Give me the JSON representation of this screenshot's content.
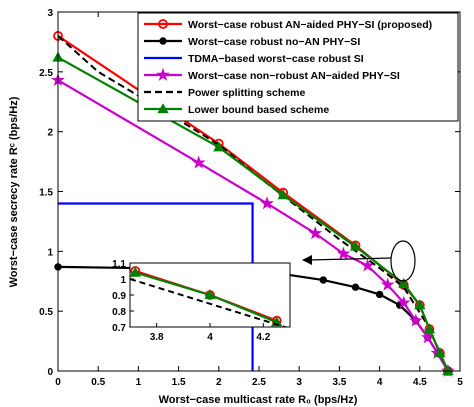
{
  "chart_data": {
    "type": "line",
    "xlabel": "Worst−case multicast rate R₀ (bps/Hz)",
    "ylabel": "Worst−case secrecy rate Rᶜ (bps/Hz)",
    "xlim": [
      0,
      5
    ],
    "ylim": [
      0,
      3
    ],
    "xticks": [
      "0",
      "0.5",
      "1",
      "1.5",
      "2",
      "2.5",
      "3",
      "3.5",
      "4",
      "4.5",
      "5"
    ],
    "yticks": [
      "0",
      "0.5",
      "1",
      "1.5",
      "2",
      "2.5",
      "3"
    ],
    "grid": false,
    "legend_position": "top-right",
    "series": [
      {
        "name": "Worst−case robust AN−aided PHY−SI (proposed)",
        "color": "#ff0000",
        "marker": "circle",
        "dash": "solid",
        "x": [
          0,
          2.0,
          2.8,
          3.7,
          4.3,
          4.5,
          4.62,
          4.75,
          4.85
        ],
        "y": [
          2.8,
          1.9,
          1.49,
          1.05,
          0.72,
          0.55,
          0.35,
          0.15,
          0.0
        ]
      },
      {
        "name": "Worst−case robust no−AN PHY−SI",
        "color": "#000000",
        "marker": "dot",
        "dash": "solid",
        "x": [
          0,
          1.0,
          2.0,
          2.8,
          3.3,
          3.7,
          4.0,
          4.25,
          4.45,
          4.6,
          4.72,
          4.85
        ],
        "y": [
          0.87,
          0.86,
          0.84,
          0.81,
          0.76,
          0.7,
          0.64,
          0.55,
          0.42,
          0.28,
          0.15,
          0.0
        ]
      },
      {
        "name": "TDMA−based worst−case robust SI",
        "color": "#0000ff",
        "marker": "none",
        "dash": "solid",
        "x": [
          0,
          2.42,
          2.42
        ],
        "y": [
          1.4,
          1.4,
          0.0
        ]
      },
      {
        "name": "Worst−case non−robust AN−aided PHY−SI",
        "color": "#cc00cc",
        "marker": "star",
        "dash": "solid",
        "x": [
          0,
          1.75,
          2.6,
          3.2,
          3.55,
          3.85,
          4.1,
          4.3,
          4.45,
          4.6,
          4.72,
          4.85
        ],
        "y": [
          2.43,
          1.74,
          1.4,
          1.15,
          0.98,
          0.88,
          0.72,
          0.57,
          0.42,
          0.28,
          0.15,
          0.0
        ]
      },
      {
        "name": "Power splitting scheme",
        "color": "#000000",
        "marker": "none",
        "dash": "dashed",
        "x": [
          0,
          0.5,
          1.0,
          1.5,
          2.0,
          2.5,
          3.0,
          3.5,
          4.0,
          4.3,
          4.6,
          4.85
        ],
        "y": [
          2.8,
          2.5,
          2.3,
          2.1,
          1.89,
          1.62,
          1.36,
          1.1,
          0.86,
          0.7,
          0.38,
          0.0
        ]
      },
      {
        "name": "Lower bound based scheme",
        "color": "#008000",
        "marker": "triangle",
        "dash": "solid",
        "x": [
          0,
          2.0,
          2.8,
          3.7,
          4.3,
          4.5,
          4.62,
          4.75,
          4.85
        ],
        "y": [
          2.62,
          1.87,
          1.47,
          1.04,
          0.73,
          0.55,
          0.35,
          0.15,
          0.0
        ]
      }
    ],
    "inset": {
      "xlim": [
        3.7,
        4.3
      ],
      "ylim": [
        0.7,
        1.1
      ],
      "xticks": [
        "3.8",
        "4",
        "4.2"
      ],
      "yticks": [
        "0.7",
        "0.8",
        "0.9",
        "1",
        "1.1"
      ],
      "series": [
        {
          "ref": "Worst−case robust AN−aided PHY−SI (proposed)",
          "color": "#ff0000",
          "marker": "circle",
          "dash": "solid",
          "x": [
            3.72,
            4.0,
            4.25
          ],
          "y": [
            1.05,
            0.9,
            0.74
          ]
        },
        {
          "ref": "Lower bound based scheme",
          "color": "#008000",
          "marker": "triangle",
          "dash": "solid",
          "x": [
            3.72,
            4.0,
            4.25
          ],
          "y": [
            1.04,
            0.9,
            0.73
          ]
        },
        {
          "ref": "Power splitting scheme",
          "color": "#000000",
          "marker": "none",
          "dash": "dashed",
          "x": [
            3.7,
            4.3
          ],
          "y": [
            1.0,
            0.69
          ]
        }
      ]
    }
  }
}
